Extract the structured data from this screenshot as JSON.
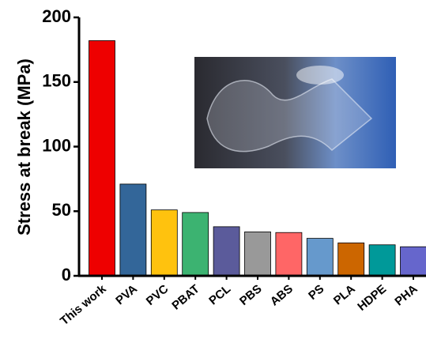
{
  "chart_data": {
    "type": "bar",
    "y_label": "Stress at break (MPa)",
    "categories": [
      "This work",
      "PVA",
      "PVC",
      "PBAT",
      "PCL",
      "PBS",
      "ABS",
      "PS",
      "PLA",
      "HDPE",
      "PHA"
    ],
    "values": [
      182,
      71,
      51,
      49,
      38,
      34,
      33.5,
      29,
      25.5,
      24,
      22.5
    ],
    "colors": [
      "#ee0000",
      "#336699",
      "#ffc20e",
      "#3cb371",
      "#5b5b9b",
      "#999999",
      "#ff6666",
      "#6699cc",
      "#cc6600",
      "#009999",
      "#6666cc"
    ],
    "ylim": [
      0,
      200
    ],
    "yticks": [
      0,
      50,
      100,
      150,
      200
    ],
    "grid": false
  }
}
